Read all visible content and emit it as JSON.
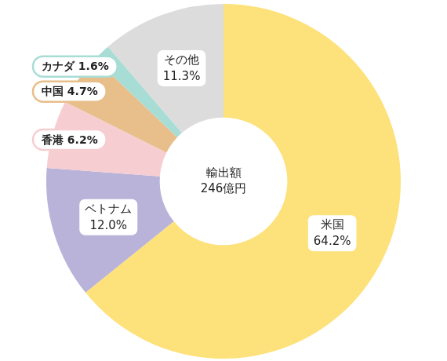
{
  "chart_data": {
    "type": "doughnut",
    "categories": [
      "米国",
      "ベトナム",
      "香港",
      "中国",
      "カナダ",
      "その他"
    ],
    "values": [
      64.2,
      12.0,
      6.2,
      4.7,
      1.6,
      11.3
    ],
    "value_labels": [
      "64.2%",
      "12.0%",
      "6.2%",
      "4.7%",
      "1.6%",
      "11.3%"
    ],
    "colors": [
      "#fde17a",
      "#b9b2d9",
      "#f6cdd1",
      "#e8be8a",
      "#a8ddd5",
      "#dcdcdc"
    ],
    "data_labels": true,
    "annotations": [
      "輸出額",
      "246億円"
    ]
  }
}
